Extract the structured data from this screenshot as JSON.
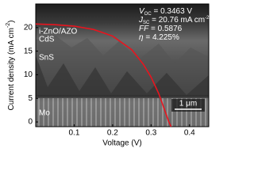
{
  "chart_data": {
    "type": "line",
    "x_label": "Voltage (V)",
    "y_label": {
      "text": "Current density (mA cm",
      "superscript": "-2",
      "close": ")"
    },
    "x": [
      0,
      0.05,
      0.1,
      0.15,
      0.2,
      0.25,
      0.28,
      0.3,
      0.32,
      0.3463,
      0.352
    ],
    "series": [
      {
        "color": "#e8141e",
        "values": [
          20.76,
          20.6,
          20.3,
          19.6,
          18.2,
          15.3,
          12.2,
          9.5,
          6.0,
          0,
          -1
        ]
      }
    ],
    "xlim": [
      0,
      0.45
    ],
    "xticks": [
      0.1,
      0.2,
      0.3,
      0.4
    ],
    "ylim": [
      -1,
      25
    ],
    "yticks": [
      0,
      5,
      10,
      15,
      20
    ],
    "annotations": [
      {
        "symbol": "V",
        "subscript": "OC",
        "text": " = 0.3463 V"
      },
      {
        "symbol": "J",
        "subscript": "SC",
        "text": " = 20.76 mA cm",
        "superscript": "-2"
      },
      {
        "symbol": "FF",
        "text": " = 0.5876"
      },
      {
        "symbol": "η",
        "text": " = 4.225%"
      }
    ],
    "layer_labels": [
      "i-ZnO/AZO",
      "CdS",
      "SnS",
      "Mo"
    ],
    "scale_bar": "1 μm"
  }
}
